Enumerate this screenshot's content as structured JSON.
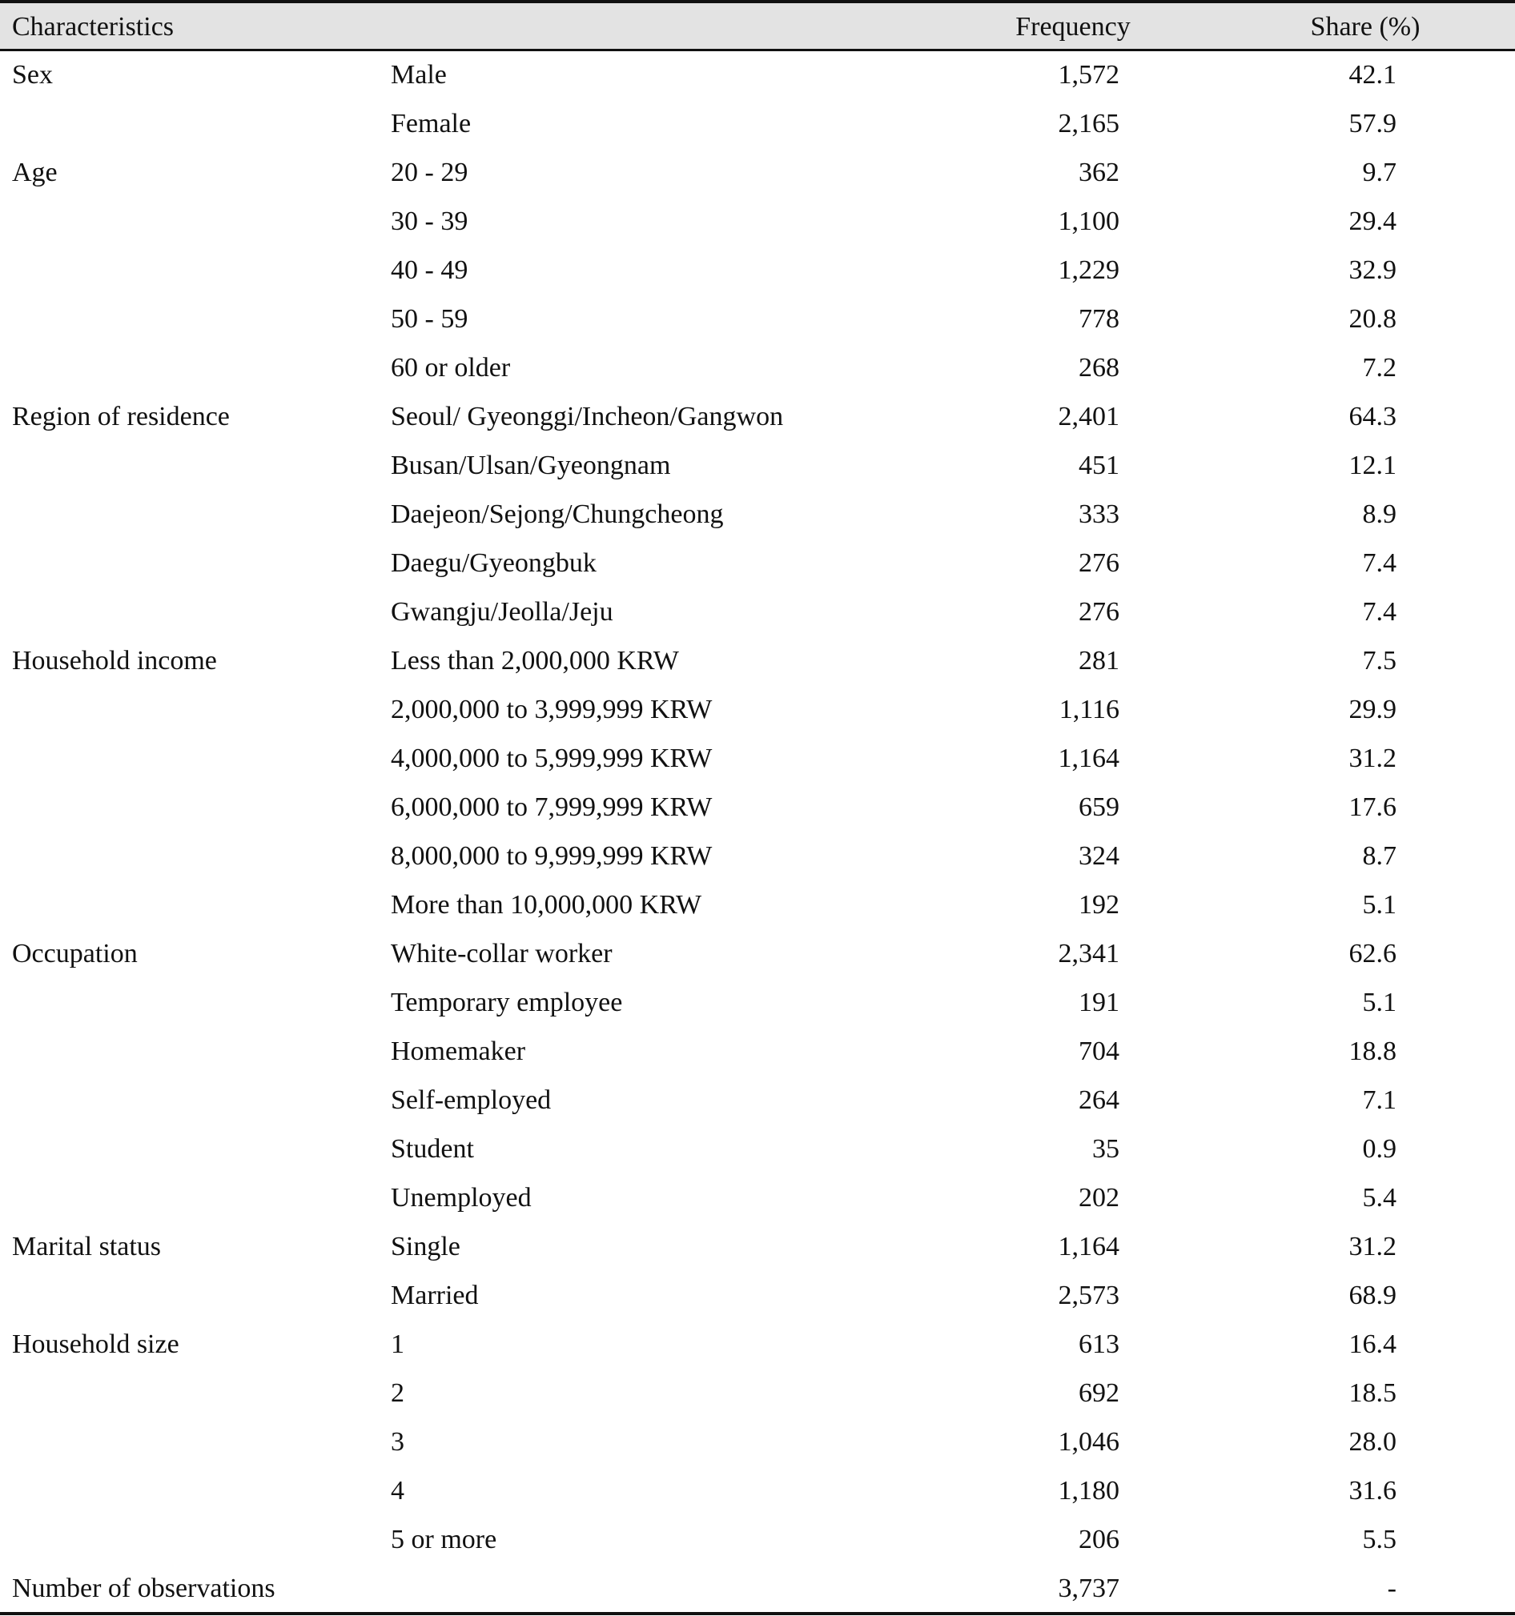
{
  "header": {
    "characteristics": "Characteristics",
    "frequency": "Frequency",
    "share": "Share (%)"
  },
  "rows": [
    {
      "group": "Sex",
      "sub": "Male",
      "freq": "1,572",
      "share": "42.1"
    },
    {
      "group": "",
      "sub": "Female",
      "freq": "2,165",
      "share": "57.9"
    },
    {
      "group": "Age",
      "sub": "20 - 29",
      "freq": "362",
      "share": "9.7"
    },
    {
      "group": "",
      "sub": "30 - 39",
      "freq": "1,100",
      "share": "29.4"
    },
    {
      "group": "",
      "sub": "40 - 49",
      "freq": "1,229",
      "share": "32.9"
    },
    {
      "group": "",
      "sub": "50 - 59",
      "freq": "778",
      "share": "20.8"
    },
    {
      "group": "",
      "sub": "60 or older",
      "freq": "268",
      "share": "7.2"
    },
    {
      "group": "Region of residence",
      "sub": "Seoul/ Gyeonggi/Incheon/Gangwon",
      "freq": "2,401",
      "share": "64.3"
    },
    {
      "group": "",
      "sub": "Busan/Ulsan/Gyeongnam",
      "freq": "451",
      "share": "12.1"
    },
    {
      "group": "",
      "sub": "Daejeon/Sejong/Chungcheong",
      "freq": "333",
      "share": "8.9"
    },
    {
      "group": "",
      "sub": "Daegu/Gyeongbuk",
      "freq": "276",
      "share": "7.4"
    },
    {
      "group": "",
      "sub": "Gwangju/Jeolla/Jeju",
      "freq": "276",
      "share": "7.4"
    },
    {
      "group": "Household income",
      "sub": "Less than 2,000,000 KRW",
      "freq": "281",
      "share": "7.5"
    },
    {
      "group": "",
      "sub": "2,000,000 to 3,999,999 KRW",
      "freq": "1,116",
      "share": "29.9"
    },
    {
      "group": "",
      "sub": "4,000,000 to 5,999,999 KRW",
      "freq": "1,164",
      "share": "31.2"
    },
    {
      "group": "",
      "sub": "6,000,000 to 7,999,999 KRW",
      "freq": "659",
      "share": "17.6"
    },
    {
      "group": "",
      "sub": "8,000,000 to 9,999,999 KRW",
      "freq": "324",
      "share": "8.7"
    },
    {
      "group": "",
      "sub": "More than 10,000,000 KRW",
      "freq": "192",
      "share": "5.1"
    },
    {
      "group": "Occupation",
      "sub": "White-collar worker",
      "freq": "2,341",
      "share": "62.6"
    },
    {
      "group": "",
      "sub": "Temporary employee",
      "freq": "191",
      "share": "5.1"
    },
    {
      "group": "",
      "sub": "Homemaker",
      "freq": "704",
      "share": "18.8"
    },
    {
      "group": "",
      "sub": "Self-employed",
      "freq": "264",
      "share": "7.1"
    },
    {
      "group": "",
      "sub": "Student",
      "freq": "35",
      "share": "0.9"
    },
    {
      "group": "",
      "sub": "Unemployed",
      "freq": "202",
      "share": "5.4"
    },
    {
      "group": "Marital status",
      "sub": "Single",
      "freq": "1,164",
      "share": "31.2"
    },
    {
      "group": "",
      "sub": "Married",
      "freq": "2,573",
      "share": "68.9"
    },
    {
      "group": "Household size",
      "sub": "1",
      "freq": "613",
      "share": "16.4"
    },
    {
      "group": "",
      "sub": "2",
      "freq": "692",
      "share": "18.5"
    },
    {
      "group": "",
      "sub": "3",
      "freq": "1,046",
      "share": "28.0"
    },
    {
      "group": "",
      "sub": "4",
      "freq": "1,180",
      "share": "31.6"
    },
    {
      "group": "",
      "sub": "5 or more",
      "freq": "206",
      "share": "5.5"
    },
    {
      "group": "Number of observations",
      "sub": "",
      "freq": "3,737",
      "share": "-"
    }
  ]
}
